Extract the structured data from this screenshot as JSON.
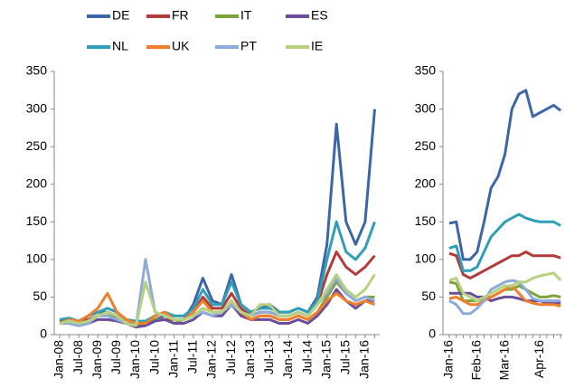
{
  "chart_data": [
    {
      "type": "line",
      "categories": [
        "Jan-08",
        null,
        "Jul-08",
        null,
        "Jan-09",
        null,
        "Jul-09",
        null,
        "Jan-10",
        null,
        "Jul-10",
        null,
        "Jan-11",
        null,
        "Jul-11",
        null,
        "Jan-12",
        null,
        "Jul-12",
        null,
        "Jan-13",
        null,
        "Jul-13",
        null,
        "Jan-14",
        null,
        "Jul-14",
        null,
        "Jan-15",
        null,
        "Jul-15",
        null,
        "Jan-16",
        null
      ],
      "ylim": [
        0,
        350
      ],
      "yticks": [
        0,
        50,
        100,
        150,
        200,
        250,
        300,
        350
      ],
      "series": [
        {
          "name": "DE",
          "color": "#3d66a6",
          "values": [
            18,
            20,
            15,
            25,
            30,
            30,
            25,
            20,
            15,
            15,
            20,
            25,
            20,
            20,
            40,
            75,
            45,
            40,
            80,
            40,
            30,
            35,
            40,
            30,
            30,
            35,
            30,
            50,
            120,
            280,
            150,
            120,
            150,
            300
          ]
        },
        {
          "name": "FR",
          "color": "#b23c3a",
          "values": [
            20,
            18,
            15,
            20,
            25,
            30,
            25,
            15,
            15,
            15,
            20,
            20,
            20,
            20,
            30,
            50,
            35,
            35,
            55,
            35,
            25,
            30,
            30,
            25,
            25,
            30,
            25,
            40,
            80,
            110,
            90,
            80,
            90,
            105
          ]
        },
        {
          "name": "IT",
          "color": "#7ea33b",
          "values": [
            15,
            15,
            12,
            18,
            25,
            30,
            20,
            15,
            12,
            15,
            20,
            20,
            15,
            20,
            25,
            35,
            30,
            30,
            45,
            30,
            20,
            25,
            25,
            20,
            20,
            25,
            20,
            30,
            50,
            70,
            55,
            45,
            50,
            50
          ]
        },
        {
          "name": "ES",
          "color": "#6b4d99",
          "values": [
            15,
            15,
            12,
            15,
            20,
            20,
            18,
            15,
            10,
            12,
            18,
            20,
            15,
            15,
            20,
            30,
            25,
            25,
            40,
            25,
            20,
            20,
            20,
            15,
            15,
            20,
            15,
            25,
            40,
            60,
            45,
            35,
            45,
            45
          ]
        },
        {
          "name": "NL",
          "color": "#2f9fb8",
          "values": [
            20,
            22,
            18,
            25,
            30,
            35,
            30,
            20,
            18,
            18,
            25,
            30,
            25,
            25,
            35,
            60,
            40,
            40,
            70,
            40,
            30,
            35,
            35,
            30,
            30,
            35,
            30,
            45,
            100,
            150,
            110,
            100,
            115,
            150
          ]
        },
        {
          "name": "UK",
          "color": "#ef7f2a",
          "values": [
            15,
            20,
            18,
            25,
            35,
            55,
            30,
            20,
            15,
            15,
            25,
            30,
            20,
            20,
            30,
            45,
            30,
            30,
            45,
            30,
            20,
            25,
            25,
            20,
            20,
            25,
            20,
            30,
            45,
            55,
            45,
            40,
            45,
            40
          ]
        },
        {
          "name": "PT",
          "color": "#8eaadb",
          "values": [
            15,
            15,
            12,
            15,
            25,
            25,
            20,
            15,
            12,
            100,
            30,
            25,
            20,
            20,
            25,
            30,
            25,
            30,
            40,
            30,
            25,
            30,
            30,
            25,
            25,
            30,
            25,
            40,
            55,
            75,
            55,
            45,
            50,
            45
          ]
        },
        {
          "name": "IE",
          "color": "#b6d27f",
          "values": [
            15,
            18,
            15,
            18,
            25,
            30,
            25,
            15,
            12,
            70,
            30,
            25,
            20,
            20,
            25,
            35,
            30,
            30,
            45,
            30,
            25,
            40,
            40,
            25,
            25,
            30,
            25,
            40,
            60,
            80,
            60,
            50,
            60,
            80
          ]
        }
      ]
    },
    {
      "type": "line",
      "categories": [
        "Jan-16",
        null,
        null,
        null,
        "Feb-16",
        null,
        null,
        null,
        "Mar-16",
        null,
        null,
        null,
        null,
        "Apr-16",
        null,
        null,
        null
      ],
      "ylim": [
        0,
        350
      ],
      "yticks": [
        0,
        50,
        100,
        150,
        200,
        250,
        300,
        350
      ],
      "series": [
        {
          "color": "#3d66a6",
          "values": [
            148,
            150,
            100,
            100,
            110,
            150,
            195,
            210,
            240,
            300,
            320,
            325,
            290,
            295,
            300,
            305,
            298
          ]
        },
        {
          "color": "#b23c3a",
          "values": [
            108,
            105,
            80,
            75,
            80,
            85,
            90,
            95,
            100,
            105,
            105,
            110,
            105,
            105,
            105,
            105,
            102
          ]
        },
        {
          "color": "#7ea33b",
          "values": [
            70,
            68,
            45,
            45,
            45,
            48,
            50,
            55,
            60,
            60,
            65,
            60,
            55,
            50,
            50,
            52,
            50
          ]
        },
        {
          "color": "#6b4d99",
          "values": [
            55,
            55,
            55,
            55,
            50,
            50,
            45,
            48,
            50,
            50,
            48,
            45,
            45,
            45,
            42,
            43,
            42
          ]
        },
        {
          "color": "#2f9fb8",
          "values": [
            115,
            118,
            85,
            85,
            90,
            110,
            130,
            140,
            150,
            155,
            160,
            155,
            152,
            150,
            150,
            150,
            145
          ]
        },
        {
          "color": "#ef7f2a",
          "values": [
            48,
            50,
            45,
            40,
            40,
            45,
            50,
            55,
            60,
            65,
            55,
            45,
            42,
            40,
            40,
            40,
            38
          ]
        },
        {
          "color": "#8eaadb",
          "values": [
            45,
            40,
            28,
            28,
            35,
            45,
            60,
            65,
            70,
            72,
            70,
            60,
            48,
            45,
            45,
            45,
            45
          ]
        },
        {
          "color": "#b6d27f",
          "values": [
            72,
            75,
            55,
            50,
            45,
            50,
            55,
            60,
            65,
            65,
            70,
            70,
            75,
            78,
            80,
            82,
            72
          ]
        }
      ]
    }
  ]
}
